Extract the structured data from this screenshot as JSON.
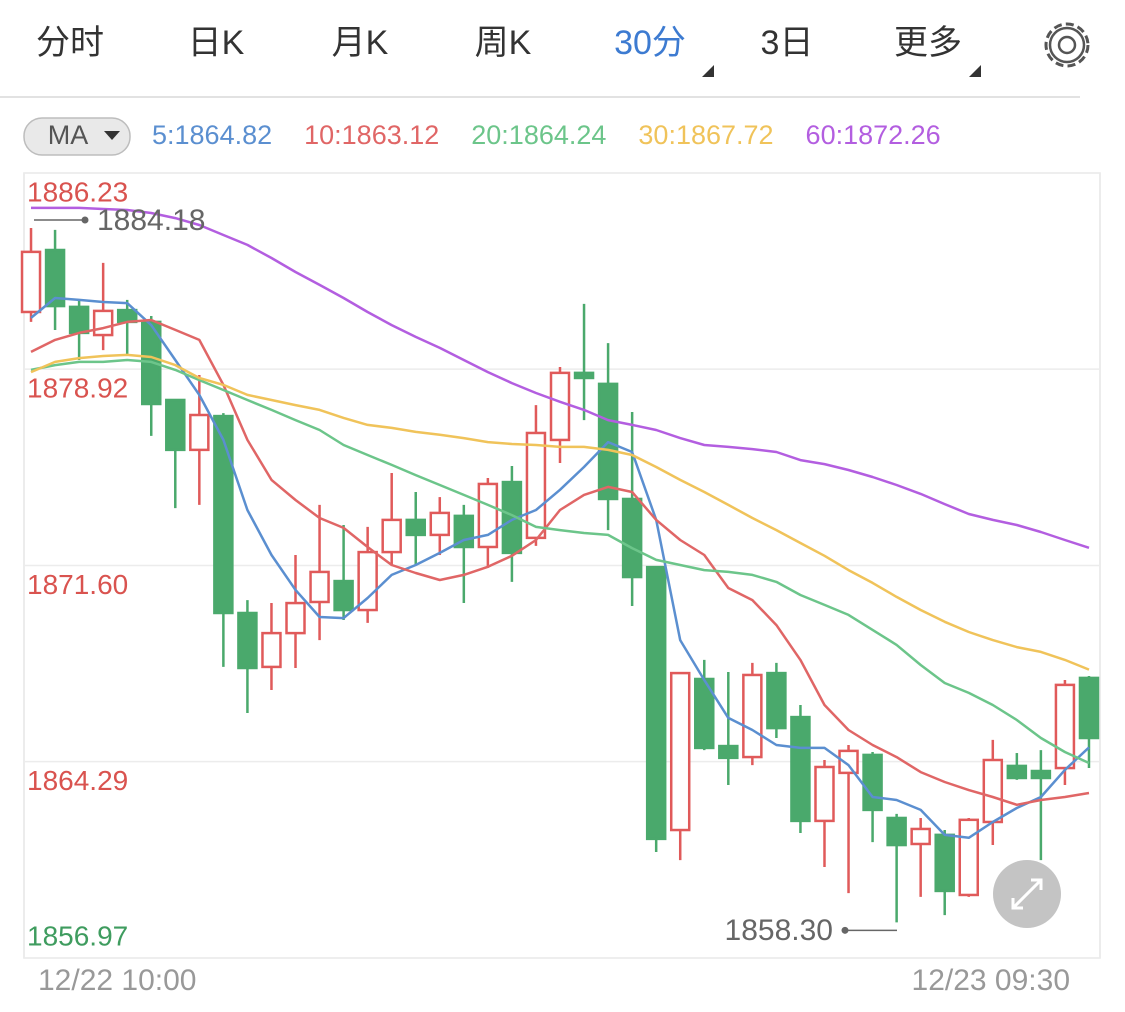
{
  "tabs": [
    "分时",
    "日K",
    "月K",
    "周K",
    "30分",
    "3日",
    "更多"
  ],
  "indicator": "MA",
  "chart_data": {
    "type": "candlestick",
    "categories": [
      "12/22 10:00",
      null,
      null,
      null,
      null,
      null,
      null,
      null,
      null,
      null,
      null,
      null,
      null,
      null,
      null,
      null,
      null,
      null,
      null,
      null,
      null,
      null,
      null,
      null,
      null,
      null,
      null,
      null,
      null,
      null,
      null,
      null,
      null,
      null,
      null,
      null,
      null,
      null,
      null,
      null,
      null,
      null,
      null,
      null,
      "12/23 09:30"
    ],
    "open": [
      1881.05,
      1883.36,
      1881.24,
      1880.19,
      1881.12,
      1880.68,
      1877.77,
      1875.91,
      1877.17,
      1869.83,
      1867.82,
      1869.08,
      1870.24,
      1871.02,
      1869.94,
      1872.1,
      1873.3,
      1872.74,
      1873.45,
      1872.29,
      1874.71,
      1872.63,
      1876.28,
      1878.78,
      1878.37,
      1874.08,
      1871.54,
      1861.74,
      1867.37,
      1864.87,
      1864.46,
      1867.59,
      1865.95,
      1862.08,
      1863.87,
      1864.54,
      1862.19,
      1861.22,
      1861.56,
      1859.32,
      1862.04,
      1864.13,
      1863.94,
      1864.05,
      1867.41
    ],
    "high": [
      1884.18,
      1884.11,
      1881.5,
      1882.88,
      1881.5,
      1880.9,
      1877.77,
      1878.7,
      1877.28,
      1870.31,
      1870.2,
      1871.99,
      1873.86,
      1873.11,
      1873.04,
      1875.05,
      1874.34,
      1874.15,
      1873.86,
      1874.86,
      1875.31,
      1877.58,
      1879.0,
      1881.35,
      1879.89,
      1877.32,
      1871.54,
      1867.59,
      1868.08,
      1867.63,
      1867.97,
      1867.97,
      1866.4,
      1864.35,
      1864.91,
      1864.65,
      1862.34,
      1862.19,
      1861.74,
      1862.19,
      1865.1,
      1864.61,
      1864.72,
      1867.33,
      1867.48
    ],
    "low": [
      1880.68,
      1880.38,
      1879.26,
      1879.63,
      1879.45,
      1876.43,
      1873.74,
      1873.86,
      1867.82,
      1866.1,
      1866.96,
      1867.78,
      1868.82,
      1869.57,
      1869.46,
      1871.62,
      1871.62,
      1871.99,
      1870.2,
      1871.51,
      1870.99,
      1872.33,
      1875.42,
      1877.02,
      1872.92,
      1870.09,
      1860.92,
      1860.62,
      1864.72,
      1863.42,
      1864.16,
      1865.17,
      1861.63,
      1860.36,
      1859.39,
      1861.29,
      1858.3,
      1859.25,
      1858.57,
      1859.25,
      1861.18,
      1863.61,
      1860.62,
      1863.42,
      1864.05
    ],
    "close": [
      1883.29,
      1881.27,
      1880.27,
      1881.09,
      1880.68,
      1877.62,
      1875.91,
      1877.21,
      1869.83,
      1867.78,
      1869.08,
      1870.2,
      1871.36,
      1869.94,
      1872.1,
      1873.3,
      1872.74,
      1873.56,
      1872.29,
      1874.64,
      1872.07,
      1876.54,
      1878.78,
      1878.59,
      1874.08,
      1871.17,
      1861.41,
      1867.59,
      1864.8,
      1864.43,
      1867.52,
      1865.54,
      1862.08,
      1864.09,
      1864.69,
      1862.49,
      1861.18,
      1861.78,
      1859.47,
      1862.12,
      1864.35,
      1863.68,
      1863.68,
      1867.15,
      1865.17
    ],
    "up_color": "#e05a5a",
    "down_color": "#4aa96c",
    "lines": [
      {
        "name": "5:1864.82",
        "color": "#5b8fd0",
        "values": [
          1880.83,
          1881.57,
          1881.5,
          1881.42,
          1881.38,
          1880.56,
          1879.26,
          1877.96,
          1876.28,
          1873.67,
          1871.99,
          1870.69,
          1869.68,
          1869.64,
          1870.39,
          1871.25,
          1871.62,
          1872.07,
          1872.55,
          1872.74,
          1873.3,
          1873.67,
          1874.42,
          1875.27,
          1876.2,
          1875.83,
          1873.3,
          1868.82,
          1867.33,
          1865.92,
          1865.47,
          1864.91,
          1864.8,
          1864.8,
          1864.16,
          1862.97,
          1862.86,
          1862.49,
          1861.56,
          1861.45,
          1862.04,
          1862.56,
          1862.97,
          1863.98,
          1864.82
        ]
      },
      {
        "name": "10:1863.12",
        "color": "#e06666",
        "values": [
          1879.56,
          1880.01,
          1880.27,
          1880.45,
          1880.68,
          1880.75,
          1880.38,
          1880.01,
          1878.33,
          1876.28,
          1874.79,
          1874.04,
          1873.37,
          1873.0,
          1872.29,
          1871.62,
          1871.32,
          1871.06,
          1871.25,
          1871.55,
          1871.96,
          1872.55,
          1873.67,
          1874.23,
          1874.53,
          1874.34,
          1873.3,
          1872.55,
          1871.99,
          1870.76,
          1870.31,
          1869.38,
          1868.08,
          1866.4,
          1865.47,
          1864.91,
          1864.46,
          1863.9,
          1863.53,
          1863.23,
          1862.97,
          1862.68,
          1862.86,
          1862.97,
          1863.12
        ]
      },
      {
        "name": "20:1864.24",
        "color": "#6cc58a",
        "values": [
          1878.89,
          1879.07,
          1879.19,
          1879.19,
          1879.26,
          1879.19,
          1878.89,
          1878.51,
          1878.14,
          1877.77,
          1877.4,
          1877.02,
          1876.65,
          1876.09,
          1875.72,
          1875.35,
          1874.97,
          1874.6,
          1874.23,
          1873.86,
          1873.48,
          1873.04,
          1872.92,
          1872.81,
          1872.74,
          1872.25,
          1871.81,
          1871.62,
          1871.43,
          1871.36,
          1871.25,
          1870.99,
          1870.5,
          1870.13,
          1869.76,
          1869.2,
          1868.64,
          1867.89,
          1867.22,
          1866.85,
          1866.4,
          1865.84,
          1865.17,
          1864.65,
          1864.24
        ]
      },
      {
        "name": "30:1867.72",
        "color": "#f0c35a",
        "values": [
          1878.81,
          1879.19,
          1879.33,
          1879.41,
          1879.45,
          1879.37,
          1879.07,
          1878.59,
          1878.33,
          1877.96,
          1877.77,
          1877.58,
          1877.4,
          1877.1,
          1876.84,
          1876.73,
          1876.58,
          1876.47,
          1876.35,
          1876.2,
          1876.13,
          1876.09,
          1876.02,
          1876.02,
          1875.91,
          1875.72,
          1875.27,
          1874.79,
          1874.34,
          1873.86,
          1873.37,
          1872.92,
          1872.44,
          1871.96,
          1871.43,
          1870.95,
          1870.43,
          1869.94,
          1869.5,
          1869.12,
          1868.82,
          1868.56,
          1868.38,
          1868.08,
          1867.72
        ]
      },
      {
        "name": "60:1872.26",
        "color": "#b35ee0",
        "values": [
          1884.93,
          1884.93,
          1884.93,
          1884.89,
          1884.85,
          1884.74,
          1884.55,
          1884.29,
          1883.92,
          1883.55,
          1883.06,
          1882.54,
          1882.06,
          1881.57,
          1881.05,
          1880.56,
          1880.12,
          1879.71,
          1879.26,
          1878.81,
          1878.4,
          1878.03,
          1877.7,
          1877.4,
          1877.02,
          1876.84,
          1876.65,
          1876.35,
          1876.09,
          1876.02,
          1875.94,
          1875.83,
          1875.53,
          1875.38,
          1875.16,
          1874.9,
          1874.6,
          1874.27,
          1873.89,
          1873.52,
          1873.3,
          1873.11,
          1872.85,
          1872.55,
          1872.26
        ]
      }
    ],
    "ylim": [
      1856.97,
      1886.23
    ],
    "yticks": [
      1886.23,
      1878.92,
      {
        "value": 1871.6,
        "label": "1871.60"
      },
      1864.29,
      1856.97
    ],
    "grid": true,
    "annotations": [
      {
        "value": 1884.18,
        "label": "1884.18"
      },
      {
        "value": 1858.3,
        "label": "1858.30"
      }
    ]
  }
}
